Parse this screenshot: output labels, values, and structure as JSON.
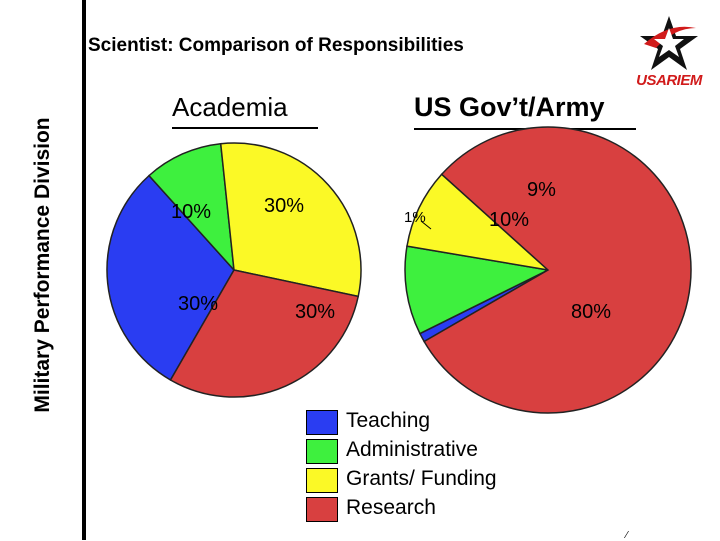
{
  "sidebar": {
    "label": "Military Performance Division"
  },
  "slide": {
    "title": "Scientist: Comparison of Responsibilities"
  },
  "logo": {
    "text": "USARIEM",
    "icon": "star-logo-icon"
  },
  "colors": {
    "Teaching": "#2a3df2",
    "Administrative": "#3ef03e",
    "Grants/ Funding": "#fbf926",
    "Research": "#d84040"
  },
  "chart_data": [
    {
      "type": "pie",
      "title": "Academia",
      "categories": [
        "Teaching",
        "Administrative",
        "Grants/ Funding",
        "Research"
      ],
      "values": [
        30,
        10,
        30,
        30
      ],
      "data_labels": [
        "30%",
        "10%",
        "30%",
        "30%"
      ]
    },
    {
      "type": "pie",
      "title": "US Gov’t/Army",
      "categories": [
        "Teaching",
        "Administrative",
        "Grants/ Funding",
        "Research"
      ],
      "values": [
        1,
        10,
        9,
        80
      ],
      "data_labels": [
        "1%",
        "10%",
        "9%",
        "80%"
      ]
    }
  ],
  "legend": {
    "placement": "bottom-center",
    "items": [
      "Teaching",
      "Administrative",
      "Grants/ Funding",
      "Research"
    ]
  },
  "corner_mark": "⁄"
}
